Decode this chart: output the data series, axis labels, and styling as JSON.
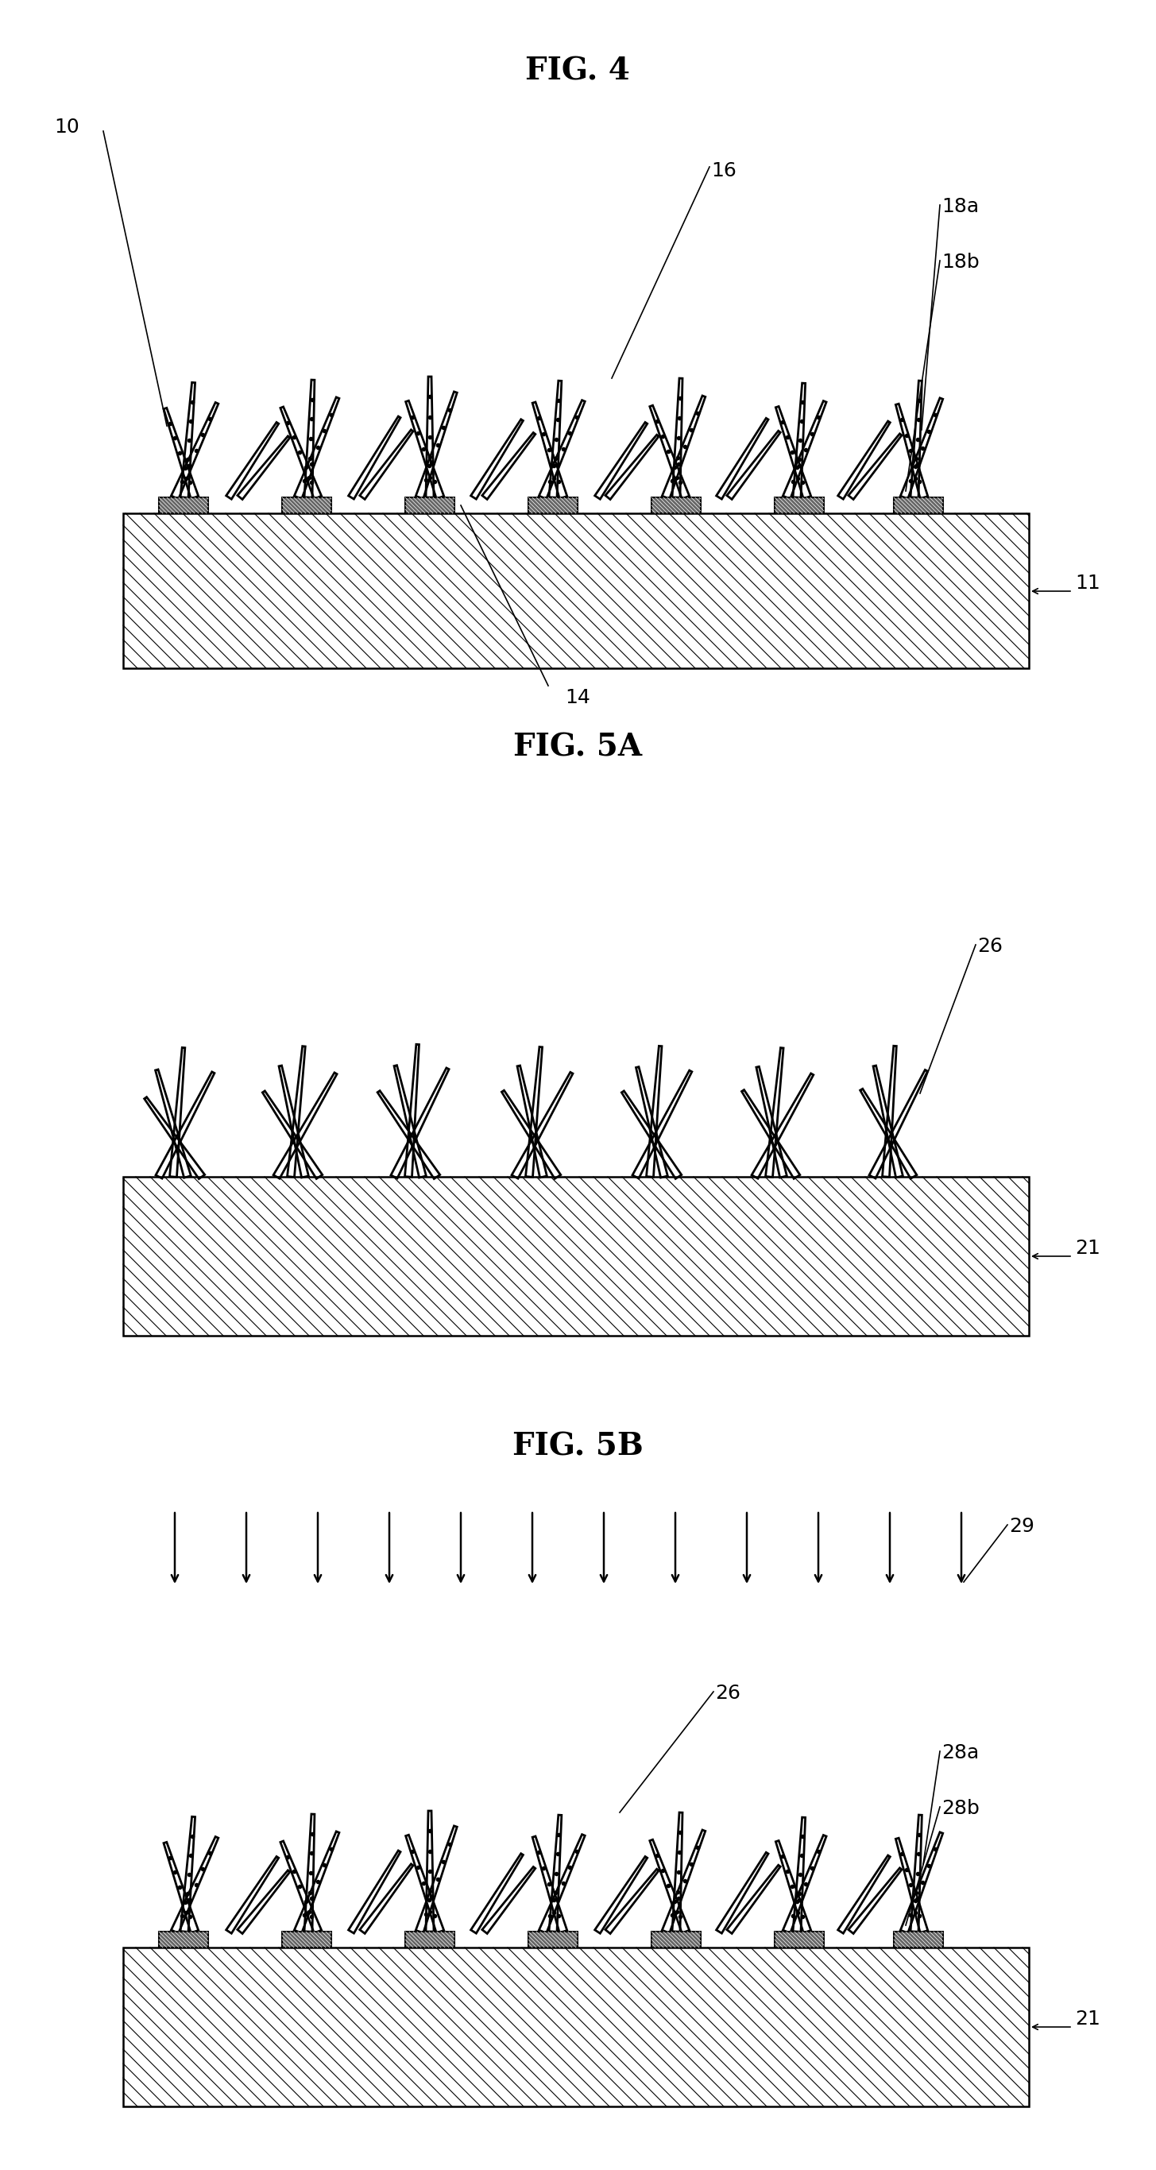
{
  "fig4_title": "FIG. 4",
  "fig5a_title": "FIG. 5A",
  "fig5b_title": "FIG. 5B",
  "bg_color": "#ffffff",
  "line_color": "#000000",
  "label_fontsize": 18,
  "title_fontsize": 28
}
